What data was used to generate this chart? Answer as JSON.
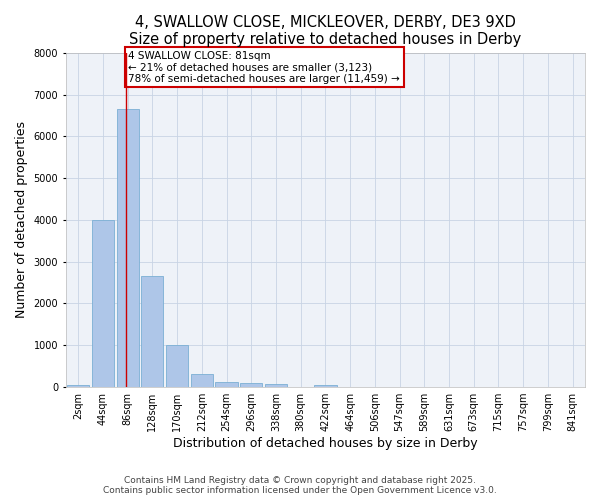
{
  "title1": "4, SWALLOW CLOSE, MICKLEOVER, DERBY, DE3 9XD",
  "title2": "Size of property relative to detached houses in Derby",
  "xlabel": "Distribution of detached houses by size in Derby",
  "ylabel": "Number of detached properties",
  "categories": [
    "2sqm",
    "44sqm",
    "86sqm",
    "128sqm",
    "170sqm",
    "212sqm",
    "254sqm",
    "296sqm",
    "338sqm",
    "380sqm",
    "422sqm",
    "464sqm",
    "506sqm",
    "547sqm",
    "589sqm",
    "631sqm",
    "673sqm",
    "715sqm",
    "757sqm",
    "799sqm",
    "841sqm"
  ],
  "values": [
    50,
    4000,
    6650,
    2650,
    1000,
    320,
    120,
    100,
    80,
    0,
    50,
    0,
    0,
    0,
    0,
    0,
    0,
    0,
    0,
    0,
    0
  ],
  "bar_color": "#aec6e8",
  "bar_edgecolor": "#7bafd4",
  "vline_x_index": 1.95,
  "vline_color": "#cc0000",
  "annotation_text": "4 SWALLOW CLOSE: 81sqm\n← 21% of detached houses are smaller (3,123)\n78% of semi-detached houses are larger (11,459) →",
  "annotation_box_color": "#cc0000",
  "ylim": [
    0,
    8000
  ],
  "yticks": [
    0,
    1000,
    2000,
    3000,
    4000,
    5000,
    6000,
    7000,
    8000
  ],
  "bg_color": "#eef2f8",
  "grid_color": "#c8d4e4",
  "footer1": "Contains HM Land Registry data © Crown copyright and database right 2025.",
  "footer2": "Contains public sector information licensed under the Open Government Licence v3.0.",
  "title_fontsize": 10.5,
  "axis_label_fontsize": 9,
  "tick_fontsize": 7,
  "annotation_fontsize": 7.5,
  "footer_fontsize": 6.5
}
